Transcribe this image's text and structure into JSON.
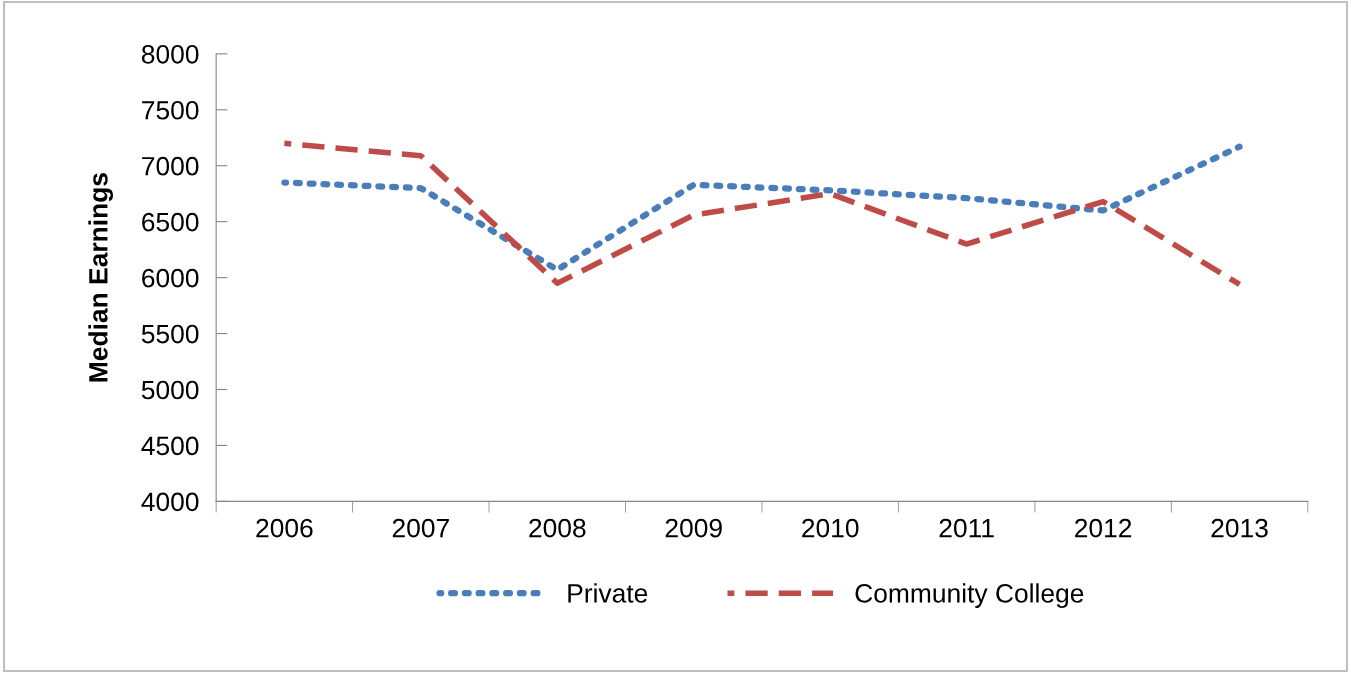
{
  "chart_data": {
    "type": "line",
    "ylabel": "Median Earnings",
    "categories": [
      "2006",
      "2007",
      "2008",
      "2009",
      "2010",
      "2011",
      "2012",
      "2013"
    ],
    "series": [
      {
        "name": "Private",
        "color": "#4a7ebb",
        "line_style": "dotted",
        "values": [
          6850,
          6800,
          6070,
          6830,
          6780,
          6710,
          6600,
          7170
        ]
      },
      {
        "name": "Community College",
        "color": "#be4b48",
        "line_style": "dashed",
        "values": [
          7200,
          7090,
          5950,
          6560,
          6750,
          6300,
          6680,
          5940
        ]
      }
    ],
    "ylim": [
      4000,
      8000
    ],
    "yticks": [
      4000,
      4500,
      5000,
      5500,
      6000,
      6500,
      7000,
      7500,
      8000
    ],
    "grid": false,
    "legend": "bottom",
    "marker": "none"
  }
}
